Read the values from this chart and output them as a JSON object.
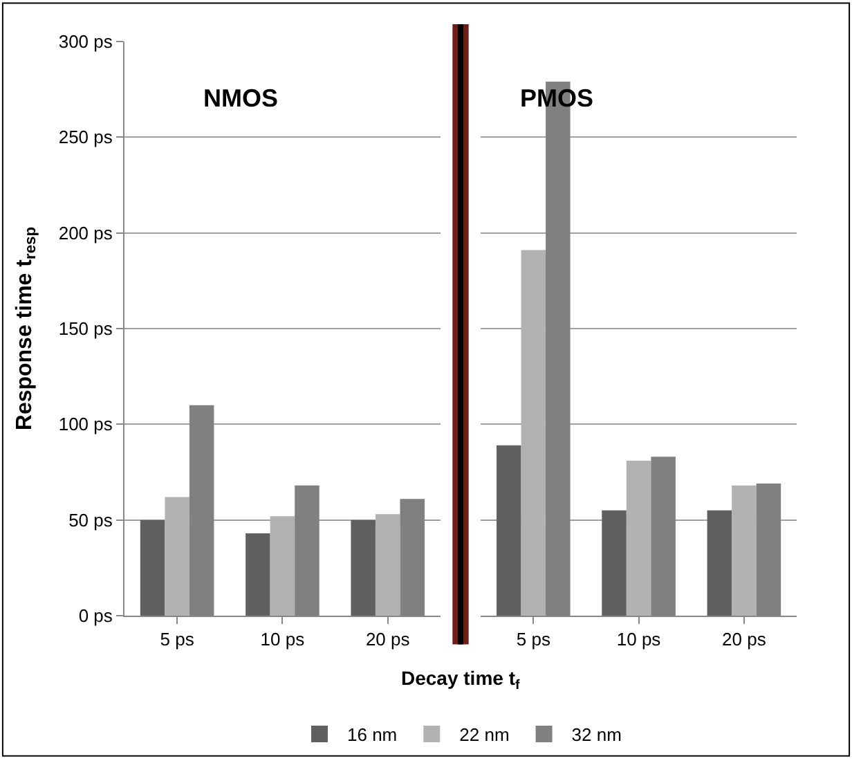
{
  "chart_data": [
    {
      "type": "bar",
      "xlabel": "Decay time t$_{f}$",
      "ylabel": "Response time t$_{resp}$",
      "categories": [
        "5 ps",
        "10 ps",
        "20 ps"
      ],
      "series": [
        {
          "name": "16 nm",
          "color": "#606060",
          "values": [
            50,
            43,
            50
          ]
        },
        {
          "name": "22 nm",
          "color": "#b2b2b2",
          "values": [
            62,
            52,
            53
          ]
        },
        {
          "name": "32 nm",
          "color": "#808080",
          "values": [
            110,
            68,
            61
          ]
        }
      ],
      "ylim": [
        0,
        300
      ],
      "yticks": [
        {
          "value": 0,
          "label": "0 ps"
        },
        {
          "value": 50,
          "label": "50 ps"
        },
        {
          "value": 100,
          "label": "100 ps"
        },
        {
          "value": 150,
          "label": "150 ps"
        },
        {
          "value": 200,
          "label": "200 ps"
        },
        {
          "value": 250,
          "label": "250 ps"
        },
        {
          "value": 300,
          "label": "300 ps"
        }
      ],
      "annotations": [
        "NMOS"
      ],
      "grid": "y",
      "legend": "bottom"
    },
    {
      "type": "bar",
      "categories": [
        "5 ps",
        "10 ps",
        "20 ps"
      ],
      "series": [
        {
          "color": "#606060",
          "values": [
            89,
            55,
            55
          ]
        },
        {
          "color": "#b2b2b2",
          "values": [
            191,
            81,
            68
          ]
        },
        {
          "color": "#808080",
          "values": [
            279,
            83,
            69
          ]
        }
      ],
      "ylim": [
        0,
        300
      ],
      "yticks": [
        {
          "value": 0,
          "label": null
        },
        {
          "value": 50,
          "label": null
        },
        {
          "value": 100,
          "label": null
        },
        {
          "value": 150,
          "label": null
        },
        {
          "value": 200,
          "label": null
        },
        {
          "value": 250,
          "label": null
        },
        {
          "value": 300,
          "label": null
        }
      ],
      "annotations": [
        "PMOS"
      ],
      "grid": "y",
      "tick_labels": "x"
    }
  ]
}
